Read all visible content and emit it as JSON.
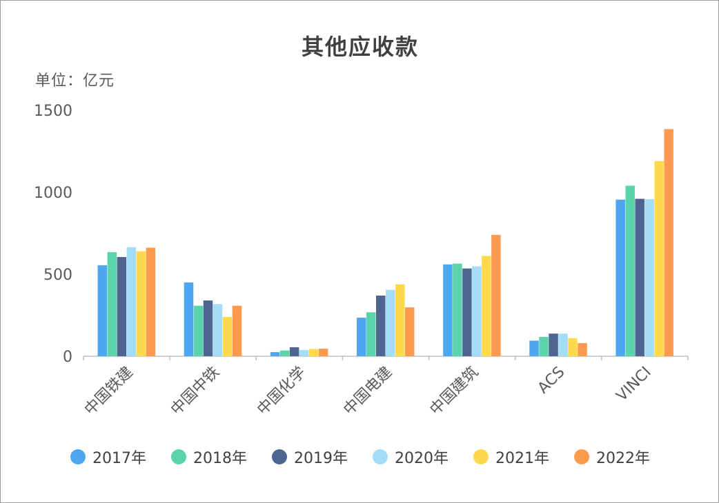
{
  "chart_data": {
    "type": "bar",
    "title": "其他应收款",
    "unit_label": "单位：亿元",
    "categories": [
      "中国铁建",
      "中国中铁",
      "中国化学",
      "中国电建",
      "中国建筑",
      "ACS",
      "VINCI"
    ],
    "ylim": [
      0,
      1500
    ],
    "yticks": [
      0,
      500,
      1000,
      1500
    ],
    "grid": false,
    "legend_position": "bottom",
    "series": [
      {
        "name": "2017年",
        "color": "#4da6f0",
        "values": [
          555,
          450,
          25,
          235,
          560,
          95,
          955
        ]
      },
      {
        "name": "2018年",
        "color": "#5bd3ad",
        "values": [
          635,
          308,
          35,
          268,
          565,
          118,
          1040
        ]
      },
      {
        "name": "2019年",
        "color": "#4d6590",
        "values": [
          605,
          340,
          55,
          370,
          535,
          138,
          960
        ]
      },
      {
        "name": "2020年",
        "color": "#a5dcf8",
        "values": [
          665,
          318,
          38,
          405,
          548,
          138,
          958
        ]
      },
      {
        "name": "2021年",
        "color": "#fdd94d",
        "values": [
          640,
          240,
          44,
          438,
          612,
          110,
          1190
        ]
      },
      {
        "name": "2022年",
        "color": "#fd9a4f",
        "values": [
          662,
          308,
          46,
          298,
          740,
          80,
          1385
        ]
      }
    ]
  }
}
